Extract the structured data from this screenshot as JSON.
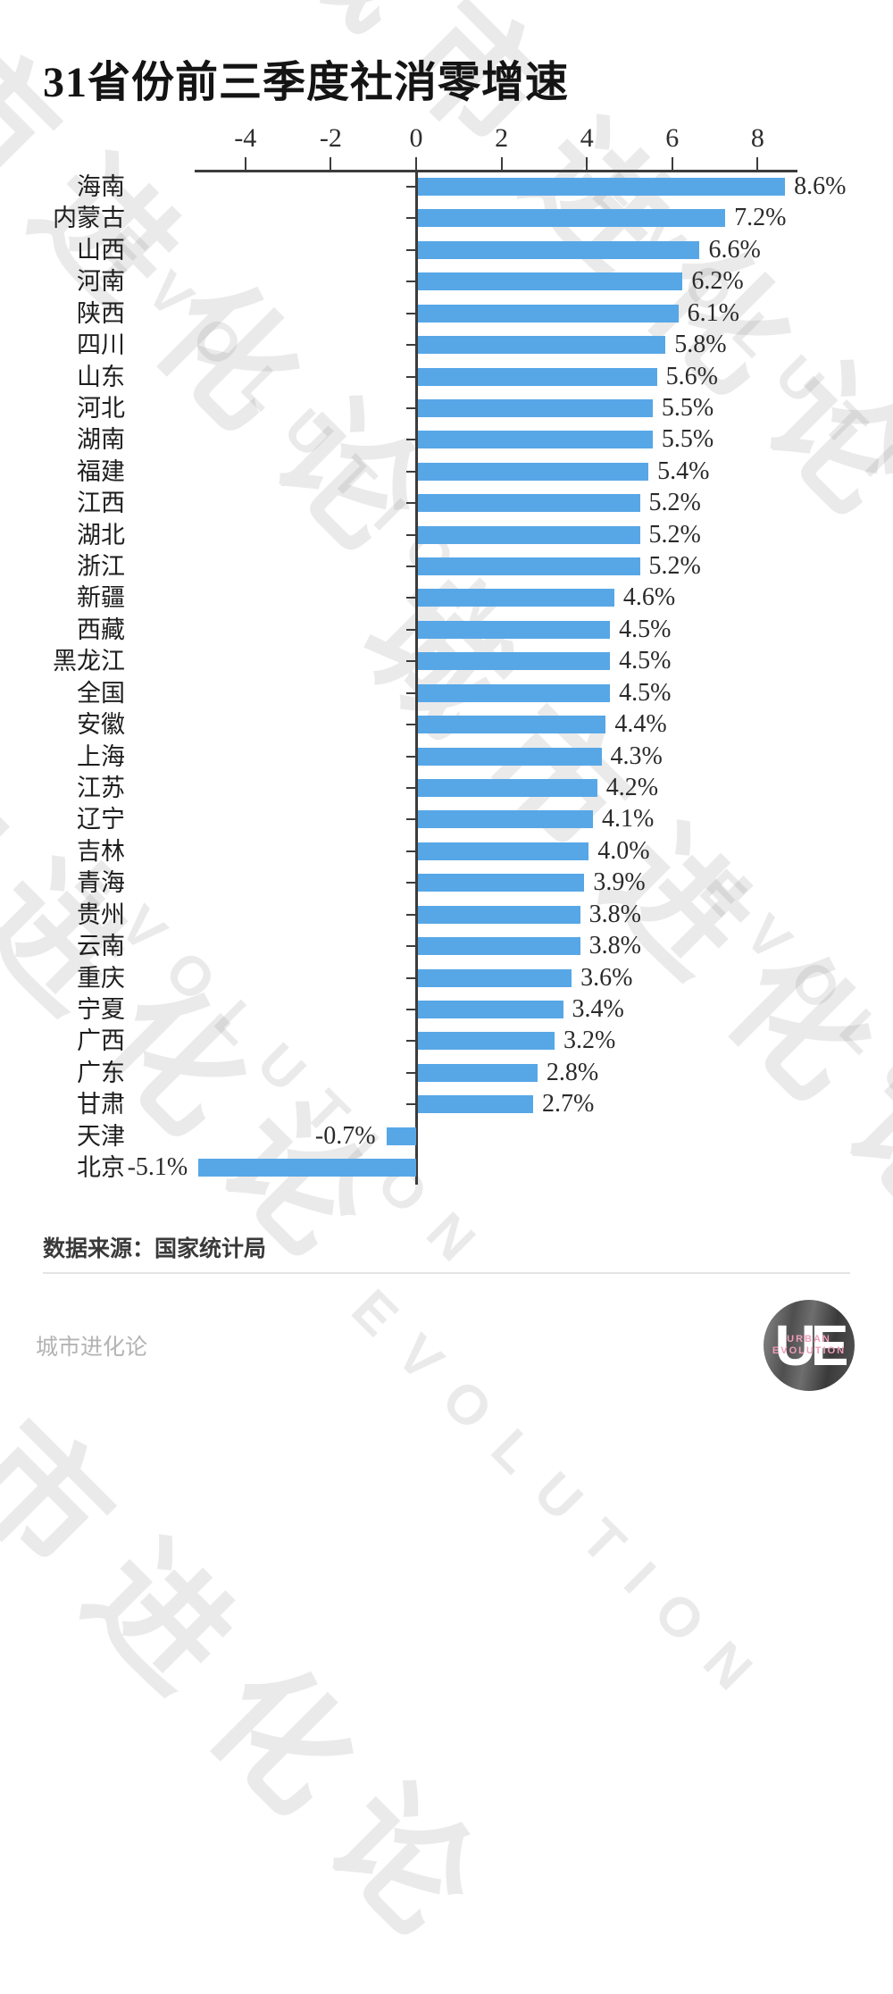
{
  "title": "31省份前三季度社消零增速",
  "source_note": "数据来源：国家统计局",
  "footer": {
    "brand": "城市进化论",
    "logo": {
      "monogram": "UE",
      "word_line1": "URBAN",
      "word_line2": "EVOLUTION"
    }
  },
  "watermark": {
    "cn": "城市进化论",
    "en": "EVOLUTION"
  },
  "chart_data": {
    "type": "bar",
    "orientation": "horizontal",
    "title": "31省份前三季度社消零增速",
    "categories": [
      "海南",
      "内蒙古",
      "山西",
      "河南",
      "陕西",
      "四川",
      "山东",
      "河北",
      "湖南",
      "福建",
      "江西",
      "湖北",
      "浙江",
      "新疆",
      "西藏",
      "黑龙江",
      "全国",
      "安徽",
      "上海",
      "江苏",
      "辽宁",
      "吉林",
      "青海",
      "贵州",
      "云南",
      "重庆",
      "宁夏",
      "广西",
      "广东",
      "甘肃",
      "天津",
      "北京"
    ],
    "values": [
      8.6,
      7.2,
      6.6,
      6.2,
      6.1,
      5.8,
      5.6,
      5.5,
      5.5,
      5.4,
      5.2,
      5.2,
      5.2,
      4.6,
      4.5,
      4.5,
      4.5,
      4.4,
      4.3,
      4.2,
      4.1,
      4.0,
      3.9,
      3.8,
      3.8,
      3.6,
      3.4,
      3.2,
      2.8,
      2.7,
      -0.7,
      -5.1
    ],
    "value_labels": [
      "8.6%",
      "7.2%",
      "6.6%",
      "6.2%",
      "6.1%",
      "5.8%",
      "5.6%",
      "5.5%",
      "5.5%",
      "5.4%",
      "5.2%",
      "5.2%",
      "5.2%",
      "4.6%",
      "4.5%",
      "4.5%",
      "4.5%",
      "4.4%",
      "4.3%",
      "4.2%",
      "4.1%",
      "4.0%",
      "3.9%",
      "3.8%",
      "3.8%",
      "3.6%",
      "3.4%",
      "3.2%",
      "2.8%",
      "2.7%",
      "-0.7%",
      "-5.1%"
    ],
    "axis_ticks": [
      -4,
      -2,
      0,
      2,
      4,
      6,
      8
    ],
    "axis_tick_labels": [
      "-4",
      "-2",
      "0",
      "2",
      "4",
      "6",
      "8"
    ],
    "xlim": [
      -5.3,
      9.1
    ],
    "xlabel": "",
    "ylabel": "",
    "grid": false,
    "legend": "none",
    "bar_color": "#57A7E7",
    "axis_color": "#3c3c3c",
    "unit": "%"
  }
}
